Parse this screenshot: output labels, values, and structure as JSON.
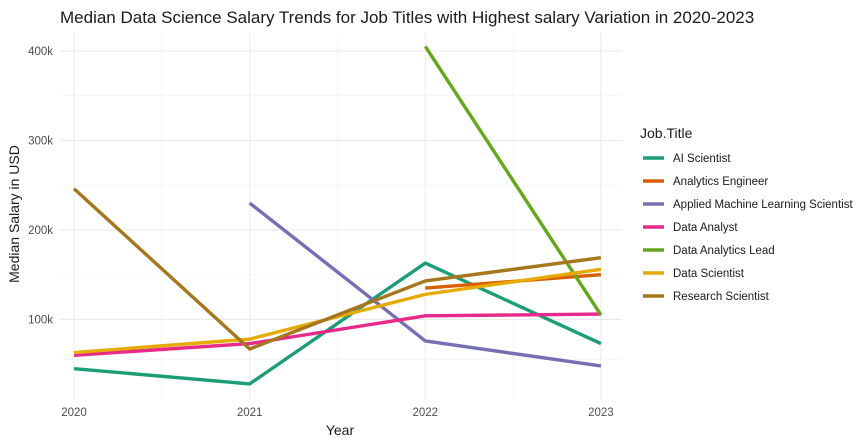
{
  "chart_data": {
    "type": "line",
    "title": "Median Data Science Salary Trends for Job Titles with Highest salary Variation in 2020-2023",
    "xlabel": "Year",
    "ylabel": "Median Salary in USD",
    "x_ticks": [
      "2020",
      "2021",
      "2022",
      "2023"
    ],
    "y_ticks": [
      {
        "value": 100000,
        "label": "100k"
      },
      {
        "value": 200000,
        "label": "200k"
      },
      {
        "value": 300000,
        "label": "300k"
      },
      {
        "value": 400000,
        "label": "400k"
      }
    ],
    "xlim": [
      2019.92,
      2023.12
    ],
    "ylim": [
      10000,
      420000
    ],
    "grid": true,
    "legend_title": "Job.Title",
    "legend_position": "right",
    "series": [
      {
        "name": "AI Scientist",
        "color": "#1B9E77",
        "points": [
          [
            2020,
            45000
          ],
          [
            2021,
            28000
          ],
          [
            2022,
            163000
          ],
          [
            2023,
            73000
          ]
        ]
      },
      {
        "name": "Analytics Engineer",
        "color": "#D95F02",
        "points": [
          [
            2022,
            135000
          ],
          [
            2023,
            150000
          ]
        ]
      },
      {
        "name": "Applied Machine Learning Scientist",
        "color": "#7570B3",
        "points": [
          [
            2021,
            230000
          ],
          [
            2022,
            76000
          ],
          [
            2023,
            48000
          ]
        ]
      },
      {
        "name": "Data Analyst",
        "color": "#E7298A",
        "points": [
          [
            2020,
            60000
          ],
          [
            2021,
            73000
          ],
          [
            2022,
            104000
          ],
          [
            2023,
            106000
          ]
        ]
      },
      {
        "name": "Data Analytics Lead",
        "color": "#66A61E",
        "points": [
          [
            2022,
            405000
          ],
          [
            2023,
            105000
          ]
        ]
      },
      {
        "name": "Data Scientist",
        "color": "#E6AB02",
        "points": [
          [
            2020,
            63000
          ],
          [
            2021,
            78000
          ],
          [
            2022,
            128000
          ],
          [
            2023,
            156000
          ]
        ]
      },
      {
        "name": "Research Scientist",
        "color": "#A6761D",
        "points": [
          [
            2020,
            246000
          ],
          [
            2021,
            67000
          ],
          [
            2022,
            143000
          ],
          [
            2023,
            169000
          ]
        ]
      }
    ]
  }
}
